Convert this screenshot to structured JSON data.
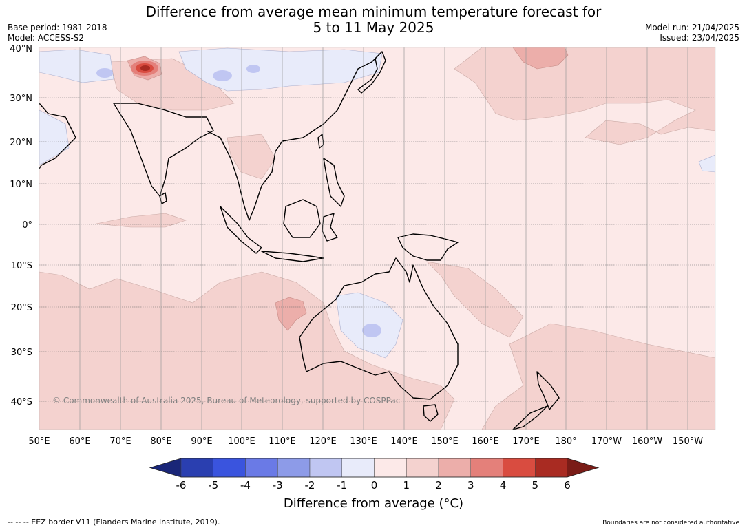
{
  "title": {
    "line1": "Difference from average mean minimum temperature forecast for",
    "line2": "5 to 11 May 2025"
  },
  "meta": {
    "base_period": "Base period: 1981-2018",
    "model": "Model: ACCESS-S2",
    "model_run": "Model run: 21/04/2025",
    "issued": "Issued: 23/04/2025"
  },
  "map": {
    "lat_labels": [
      "40°N",
      "30°N",
      "20°N",
      "10°N",
      "0°",
      "10°S",
      "20°S",
      "30°S",
      "40°S"
    ],
    "lon_labels": [
      "50°E",
      "60°E",
      "70°E",
      "80°E",
      "90°E",
      "100°E",
      "110°E",
      "120°E",
      "130°E",
      "140°E",
      "150°E",
      "160°E",
      "170°E",
      "180°",
      "170°W",
      "160°W",
      "150°W"
    ],
    "copyright": "© Commonwealth of Australia 2025, Bureau of Meteorology, supported by COSPPac",
    "colors": {
      "ocean_default": "#fce9e8",
      "land_outline": "#000000",
      "gridline": "#666666"
    }
  },
  "colorbar": {
    "ticks": [
      "-6",
      "-5",
      "-4",
      "-3",
      "-2",
      "-1",
      "0",
      "1",
      "2",
      "3",
      "4",
      "5",
      "6"
    ],
    "colors": [
      "#1a2678",
      "#2a3fb0",
      "#3a54de",
      "#6a7ae6",
      "#8d9be8",
      "#c0c6f2",
      "#e8ebfa",
      "#fce9e8",
      "#f4d2cf",
      "#ecaeaa",
      "#e4807a",
      "#d94c40",
      "#a92b22",
      "#7a1c17"
    ],
    "label": "Difference from average (°C)"
  },
  "footer": {
    "legend": "--  --  -- EEZ border V11 (Flanders Marine Institute, 2019).",
    "note": "Boundaries are not considered authoritative"
  }
}
